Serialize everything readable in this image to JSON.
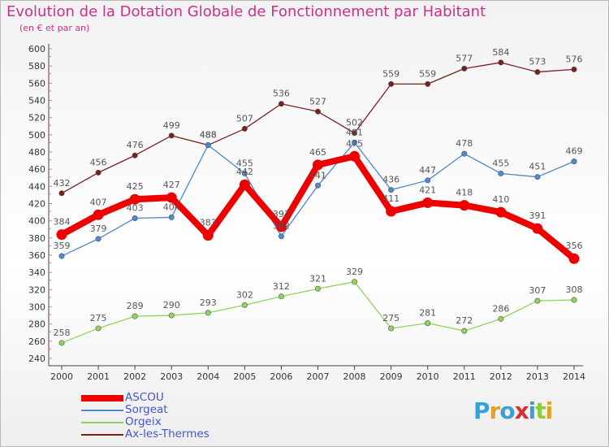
{
  "title": "Evolution de la Dotation Globale de Fonctionnement par Habitant",
  "subtitle": "(en € et par an)",
  "logo": "Proxiti",
  "colors": {
    "ASCOU": "#ee0000",
    "Sorgeat": "#4a8ad0",
    "Orgeix": "#8ed45c",
    "Ax-les-Thermes": "#7a1f1f",
    "title": "#cc2f8c",
    "legend_text": "#4455cc",
    "grid_tick": "#e36aa8"
  },
  "chart_data": {
    "type": "line",
    "title": "Evolution de la Dotation Globale de Fonctionnement par Habitant",
    "subtitle": "(en € et par an)",
    "xlabel": "",
    "ylabel": "",
    "categories": [
      "2000",
      "2001",
      "2002",
      "2003",
      "2004",
      "2005",
      "2006",
      "2007",
      "2008",
      "2009",
      "2010",
      "2011",
      "2012",
      "2013",
      "2014"
    ],
    "ylim": [
      240,
      600
    ],
    "yticks": [
      240,
      260,
      280,
      300,
      320,
      340,
      360,
      380,
      400,
      420,
      440,
      460,
      480,
      500,
      520,
      540,
      560,
      580,
      600
    ],
    "grid": false,
    "legend_position": "bottom-left",
    "series": [
      {
        "name": "ASCOU",
        "values": [
          384,
          407,
          425,
          427,
          383,
          442,
          393,
          465,
          475,
          411,
          421,
          418,
          410,
          391,
          356
        ]
      },
      {
        "name": "Sorgeat",
        "values": [
          359,
          379,
          403,
          404,
          488,
          455,
          382,
          441,
          491,
          436,
          447,
          478,
          455,
          451,
          469
        ]
      },
      {
        "name": "Orgeix",
        "values": [
          258,
          275,
          289,
          290,
          293,
          302,
          312,
          321,
          329,
          275,
          281,
          272,
          286,
          307,
          308
        ]
      },
      {
        "name": "Ax-les-Thermes",
        "values": [
          432,
          456,
          476,
          499,
          488,
          507,
          536,
          527,
          502,
          559,
          559,
          577,
          584,
          573,
          576
        ]
      }
    ]
  },
  "legend": [
    {
      "label": "ASCOU"
    },
    {
      "label": "Sorgeat"
    },
    {
      "label": "Orgeix"
    },
    {
      "label": "Ax-les-Thermes"
    }
  ]
}
